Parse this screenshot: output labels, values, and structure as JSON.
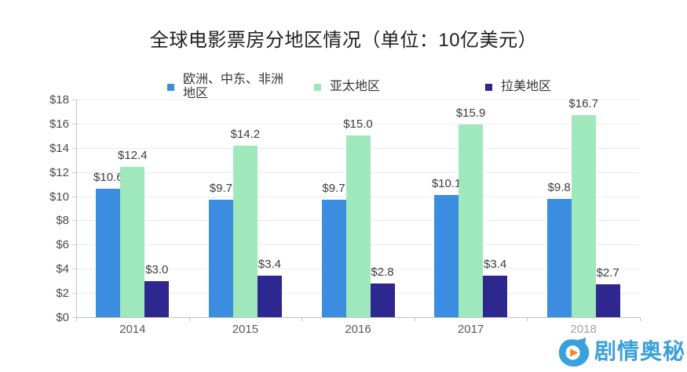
{
  "title": "全球电影票房分地区情况（单位：10亿美元）",
  "watermark": {
    "text": "剧情奥秘",
    "icon": "swirl-play-logo",
    "color": "#3aa1dc",
    "triangle_color": "#f5871f"
  },
  "chart_data": {
    "type": "bar",
    "title": "全球电影票房分地区情况（单位：10亿美元）",
    "categories": [
      "2014",
      "2015",
      "2016",
      "2017",
      "2018"
    ],
    "series": [
      {
        "name": "欧洲、中东、非洲地区",
        "color": "#3b8de0",
        "values": [
          10.6,
          9.7,
          9.7,
          10.1,
          9.8
        ]
      },
      {
        "name": "亚太地区",
        "color": "#9fe8bb",
        "values": [
          12.4,
          14.2,
          15.0,
          15.9,
          16.7
        ]
      },
      {
        "name": "拉美地区",
        "color": "#2e278f",
        "values": [
          3.0,
          3.4,
          2.8,
          3.4,
          2.7
        ]
      }
    ],
    "value_prefix": "$",
    "value_decimals": 1,
    "ylim": [
      0,
      18
    ],
    "y_tick_step": 2,
    "y_tick_prefix": "$",
    "grid": true,
    "legend_position": "top",
    "faded_category": "2018",
    "faded_category_color": "#a3a3a3",
    "xlabel": "",
    "ylabel": ""
  }
}
